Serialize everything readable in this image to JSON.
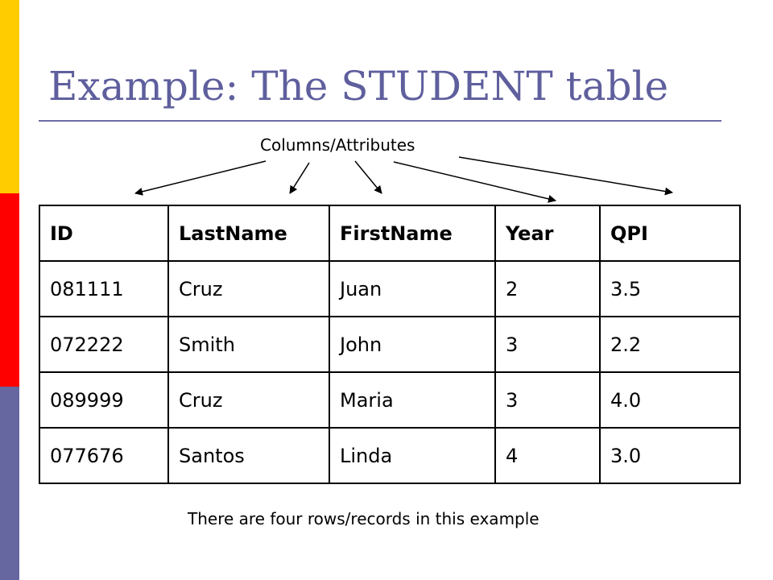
{
  "slide": {
    "title": "Example:  The STUDENT table",
    "columns_caption": "Columns/Attributes",
    "rows_caption": "There are four rows/records in this example",
    "accent_colors": {
      "title": "#5f5f9e",
      "stripe_top": "#ffcc00",
      "stripe_middle": "#ff0000",
      "stripe_bottom": "#6666a0"
    }
  },
  "table": {
    "headers": [
      "ID",
      "LastName",
      "FirstName",
      "Year",
      "QPI"
    ],
    "rows": [
      [
        "081111",
        "Cruz",
        "Juan",
        "2",
        "3.5"
      ],
      [
        "072222",
        "Smith",
        "John",
        "3",
        "2.2"
      ],
      [
        "089999",
        "Cruz",
        "Maria",
        "3",
        "4.0"
      ],
      [
        "077676",
        "Santos",
        "Linda",
        "4",
        "3.0"
      ]
    ]
  }
}
